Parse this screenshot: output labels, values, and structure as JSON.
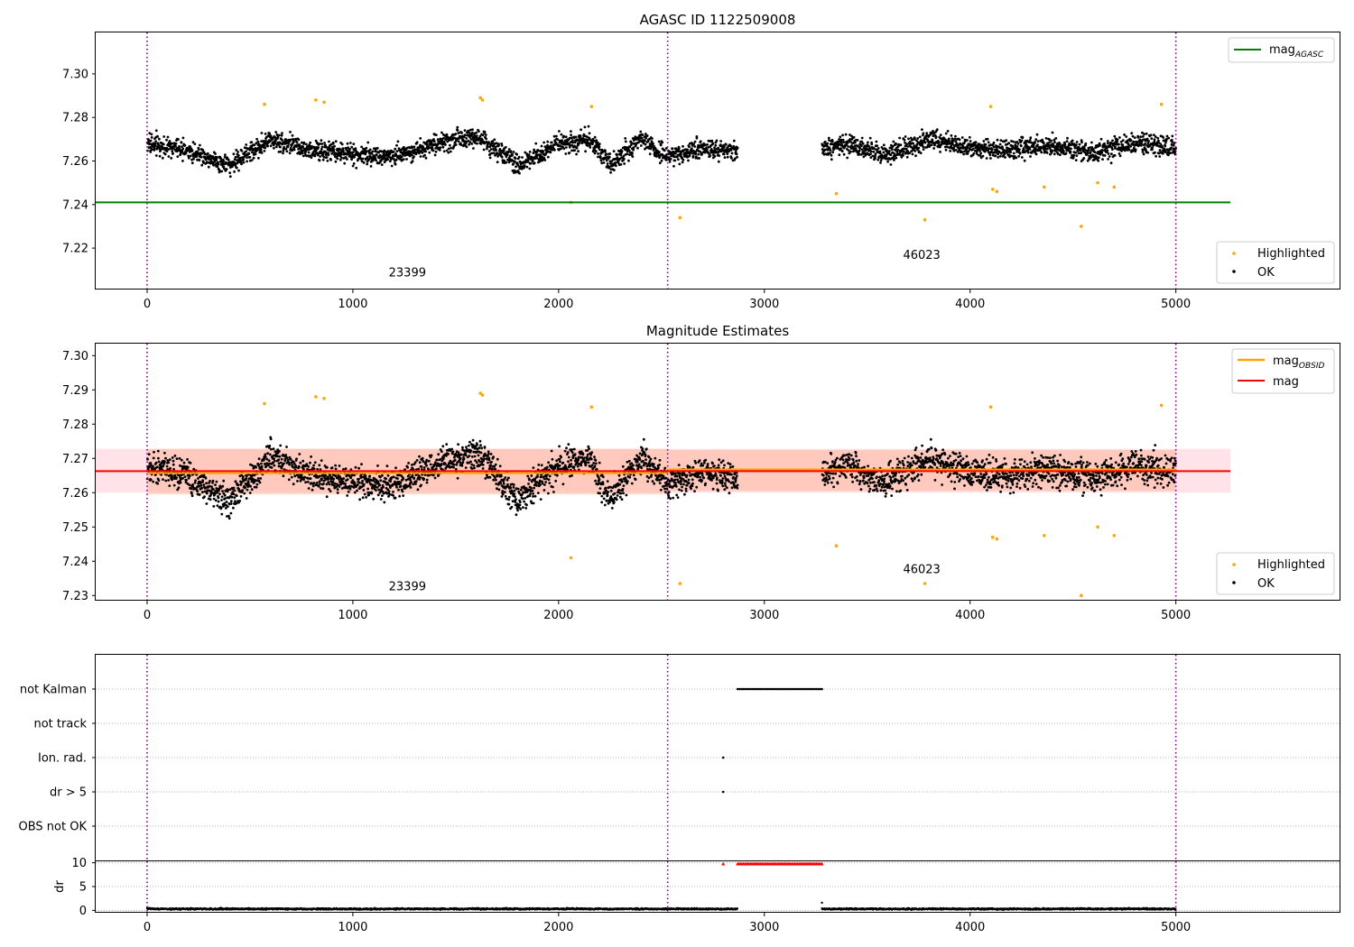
{
  "chart_data": [
    {
      "type": "scatter",
      "title": "AGASC ID 1122509008",
      "xlabel": "",
      "ylabel": "",
      "xlim": [
        -250,
        5800
      ],
      "ylim": [
        7.201,
        7.319
      ],
      "x_ticks": [
        0,
        1000,
        2000,
        3000,
        4000,
        5000
      ],
      "y_ticks": [
        7.22,
        7.24,
        7.26,
        7.28,
        7.3
      ],
      "y_tick_labels": [
        "7.22",
        "7.24",
        "7.26",
        "7.28",
        "7.30"
      ],
      "obsid_boundaries": [
        0,
        2530,
        5000
      ],
      "obsid_labels": [
        {
          "text": "23399",
          "x": 1265,
          "y": 7.207
        },
        {
          "text": "46023",
          "x": 3765,
          "y": 7.215
        }
      ],
      "reference_lines": [
        {
          "name": "mag_AGASC",
          "label_main": "mag",
          "label_sub": "AGASC",
          "value": 7.241,
          "x_range": [
            -250,
            5265
          ],
          "color": "#008000"
        }
      ],
      "series": [
        {
          "name": "Highlighted",
          "color": "#ffa500",
          "points": [
            [
              570,
              7.286
            ],
            [
              820,
              7.288
            ],
            [
              860,
              7.287
            ],
            [
              1620,
              7.289
            ],
            [
              1630,
              7.288
            ],
            [
              2160,
              7.285
            ],
            [
              2060,
              7.241
            ],
            [
              2590,
              7.234
            ],
            [
              3350,
              7.245
            ],
            [
              3780,
              7.233
            ],
            [
              4100,
              7.285
            ],
            [
              4110,
              7.247
            ],
            [
              4130,
              7.246
            ],
            [
              4360,
              7.248
            ],
            [
              4540,
              7.23
            ],
            [
              4620,
              7.25
            ],
            [
              4700,
              7.248
            ],
            [
              4930,
              7.286
            ]
          ]
        },
        {
          "name": "OK",
          "color": "#000000",
          "segments": [
            {
              "x": [
                0,
                2870
              ],
              "center": 7.266,
              "wave": [
                [
                  0,
                  7.268
                ],
                [
                  200,
                  7.265
                ],
                [
                  400,
                  7.258
                ],
                [
                  600,
                  7.27
                ],
                [
                  800,
                  7.265
                ],
                [
                  1000,
                  7.263
                ],
                [
                  1200,
                  7.262
                ],
                [
                  1400,
                  7.268
                ],
                [
                  1600,
                  7.272
                ],
                [
                  1800,
                  7.258
                ],
                [
                  2000,
                  7.268
                ],
                [
                  2150,
                  7.27
                ],
                [
                  2250,
                  7.258
                ],
                [
                  2400,
                  7.27
                ],
                [
                  2530,
                  7.262
                ],
                [
                  2700,
                  7.266
                ],
                [
                  2870,
                  7.264
                ]
              ],
              "spread": 0.0055
            },
            {
              "x": [
                3280,
                5000
              ],
              "center": 7.267,
              "wave": [
                [
                  3280,
                  7.266
                ],
                [
                  3400,
                  7.268
                ],
                [
                  3600,
                  7.263
                ],
                [
                  3800,
                  7.27
                ],
                [
                  4000,
                  7.266
                ],
                [
                  4200,
                  7.265
                ],
                [
                  4400,
                  7.267
                ],
                [
                  4600,
                  7.264
                ],
                [
                  4800,
                  7.268
                ],
                [
                  5000,
                  7.266
                ]
              ],
              "spread": 0.0055
            }
          ]
        }
      ],
      "legend": [
        {
          "position": "upper right",
          "items": [
            "mag_AGASC"
          ]
        },
        {
          "position": "lower right",
          "items": [
            "Highlighted",
            "OK"
          ]
        }
      ]
    },
    {
      "type": "scatter",
      "title": "Magnitude Estimates",
      "xlabel": "",
      "ylabel": "",
      "xlim": [
        -250,
        5800
      ],
      "ylim": [
        7.2285,
        7.3035
      ],
      "x_ticks": [
        0,
        1000,
        2000,
        3000,
        4000,
        5000
      ],
      "y_ticks": [
        7.23,
        7.24,
        7.25,
        7.26,
        7.27,
        7.28,
        7.29,
        7.3
      ],
      "y_tick_labels": [
        "7.23",
        "7.24",
        "7.25",
        "7.26",
        "7.27",
        "7.28",
        "7.29",
        "7.30"
      ],
      "obsid_boundaries": [
        0,
        2530,
        5000
      ],
      "obsid_labels": [
        {
          "text": "23399",
          "x": 1265,
          "y": 7.2315
        },
        {
          "text": "46023",
          "x": 3765,
          "y": 7.2365
        }
      ],
      "bands": [
        {
          "name": "mag range",
          "color": "#ffc0cb",
          "opacity": 0.45,
          "x_range": [
            -250,
            5265
          ],
          "y_range": [
            7.26,
            7.2728
          ]
        },
        {
          "name": "mag_OBSID 23399 range",
          "color": "#ffa07a",
          "opacity": 0.38,
          "x_range": [
            0,
            2530
          ],
          "y_range": [
            7.2595,
            7.2728
          ]
        },
        {
          "name": "mag_OBSID 46023 range",
          "color": "#ffa07a",
          "opacity": 0.38,
          "x_range": [
            2530,
            5000
          ],
          "y_range": [
            7.2605,
            7.2725
          ]
        }
      ],
      "reference_lines": [
        {
          "name": "mag_OBSID_23399",
          "value": 7.2657,
          "x_range": [
            0,
            2530
          ],
          "color": "#ffa500"
        },
        {
          "name": "mag_OBSID_46023",
          "value": 7.2668,
          "x_range": [
            2530,
            5000
          ],
          "color": "#ffa500"
        },
        {
          "name": "mag",
          "value": 7.2663,
          "x_range": [
            -250,
            5265
          ],
          "color": "#ff0000"
        }
      ],
      "series": [
        {
          "name": "Highlighted",
          "color": "#ffa500",
          "points": [
            [
              570,
              7.286
            ],
            [
              820,
              7.288
            ],
            [
              860,
              7.2875
            ],
            [
              1620,
              7.289
            ],
            [
              1630,
              7.2885
            ],
            [
              2160,
              7.285
            ],
            [
              2060,
              7.241
            ],
            [
              2590,
              7.2335
            ],
            [
              3350,
              7.2445
            ],
            [
              3780,
              7.2335
            ],
            [
              4100,
              7.285
            ],
            [
              4110,
              7.247
            ],
            [
              4130,
              7.2465
            ],
            [
              4360,
              7.2475
            ],
            [
              4540,
              7.23
            ],
            [
              4620,
              7.25
            ],
            [
              4700,
              7.2475
            ],
            [
              4930,
              7.2855
            ]
          ]
        },
        {
          "name": "OK",
          "color": "#000000",
          "segments": [
            {
              "x": [
                0,
                2870
              ],
              "center": 7.266,
              "wave": [
                [
                  0,
                  7.268
                ],
                [
                  200,
                  7.265
                ],
                [
                  400,
                  7.258
                ],
                [
                  600,
                  7.27
                ],
                [
                  800,
                  7.265
                ],
                [
                  1000,
                  7.263
                ],
                [
                  1200,
                  7.262
                ],
                [
                  1400,
                  7.268
                ],
                [
                  1600,
                  7.272
                ],
                [
                  1800,
                  7.258
                ],
                [
                  2000,
                  7.268
                ],
                [
                  2150,
                  7.27
                ],
                [
                  2250,
                  7.258
                ],
                [
                  2400,
                  7.27
                ],
                [
                  2530,
                  7.262
                ],
                [
                  2700,
                  7.266
                ],
                [
                  2870,
                  7.264
                ]
              ],
              "spread": 0.0055
            },
            {
              "x": [
                3280,
                5000
              ],
              "center": 7.267,
              "wave": [
                [
                  3280,
                  7.266
                ],
                [
                  3400,
                  7.268
                ],
                [
                  3600,
                  7.263
                ],
                [
                  3800,
                  7.27
                ],
                [
                  4000,
                  7.266
                ],
                [
                  4200,
                  7.265
                ],
                [
                  4400,
                  7.267
                ],
                [
                  4600,
                  7.264
                ],
                [
                  4800,
                  7.268
                ],
                [
                  5000,
                  7.266
                ]
              ],
              "spread": 0.0055
            }
          ]
        }
      ],
      "legend": [
        {
          "position": "upper right",
          "items": [
            "mag_OBSID",
            "mag"
          ]
        },
        {
          "position": "lower right",
          "items": [
            "Highlighted",
            "OK"
          ]
        }
      ]
    },
    {
      "type": "scatter",
      "title": "",
      "xlabel": "",
      "ylabel": "",
      "xlim": [
        -250,
        5800
      ],
      "categories": [
        "not Kalman",
        "not track",
        "Ion. rad.",
        "dr > 5",
        "OBS not OK"
      ],
      "obsid_boundaries": [
        0,
        2530,
        5000
      ],
      "flag_points": [
        {
          "category": "not Kalman",
          "x_range": [
            2870,
            3280
          ],
          "count": 46
        },
        {
          "category": "Ion. rad.",
          "x": [
            2800
          ]
        },
        {
          "category": "dr > 5",
          "x": [
            2800
          ]
        }
      ]
    },
    {
      "type": "line",
      "title": "",
      "xlabel": "",
      "ylabel": "dr",
      "xlim": [
        -250,
        5800
      ],
      "ylim": [
        -0.5,
        10.3
      ],
      "x_ticks": [
        0,
        1000,
        2000,
        3000,
        4000,
        5000
      ],
      "y_ticks": [
        0,
        5,
        10
      ],
      "y_tick_labels": [
        "0",
        "5",
        "10"
      ],
      "obsid_boundaries": [
        0,
        2530,
        5000
      ],
      "series": [
        {
          "name": "dr",
          "color": "#000000",
          "segments": [
            {
              "x": [
                0,
                2870
              ],
              "center": 0.3,
              "spread": 0.15
            },
            {
              "x": [
                3280,
                5000
              ],
              "center": 0.3,
              "spread": 0.15
            }
          ]
        },
        {
          "name": "dr > 5",
          "color": "#ff0000",
          "marker": "triangle",
          "points_range": {
            "x": [
              2870,
              3280
            ],
            "y": 9.8,
            "count": 60
          },
          "points": [
            [
              2800,
              9.8
            ]
          ]
        }
      ]
    }
  ]
}
